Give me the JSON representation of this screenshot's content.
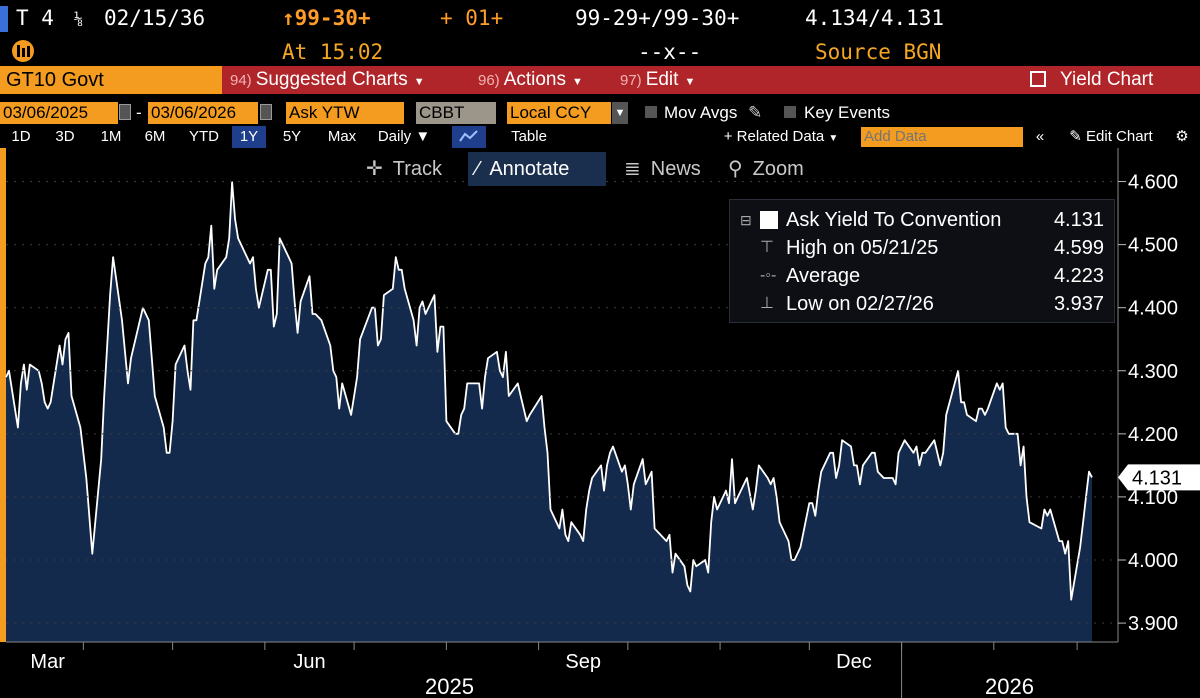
{
  "quote": {
    "ticker": "T 4",
    "coupon_fraction": "⅛",
    "maturity": "02/15/36",
    "last_price": "↑99-30+",
    "change": "+ 01+",
    "bid_ask_price": "99-29+/99-30+",
    "bid_ask_yield": "4.134/4.131",
    "time": "At 15:02",
    "spacer": "--x--",
    "source": "Source BGN"
  },
  "toolbar": {
    "security": "GT10 Govt",
    "items": [
      {
        "num": "94)",
        "label": "Suggested Charts"
      },
      {
        "num": "96)",
        "label": "Actions"
      },
      {
        "num": "97)",
        "label": "Edit"
      }
    ],
    "yield_chart": "Yield Chart"
  },
  "settings": {
    "start_date": "03/06/2025",
    "end_date": "03/06/2026",
    "dash": "-",
    "price_type": "Ask YTW",
    "pricing_source": "CBBT",
    "currency": "Local CCY",
    "mov_avgs": "Mov Avgs",
    "key_events": "Key Events"
  },
  "range": {
    "periods": [
      "1D",
      "3D",
      "1M",
      "6M",
      "YTD",
      "1Y",
      "5Y",
      "Max"
    ],
    "active": "1Y",
    "frequency": "Daily",
    "table": "Table",
    "related_data": "+ Related Data",
    "add_data_placeholder": "Add Data",
    "edit_chart": "Edit Chart"
  },
  "tools": [
    "Track",
    "Annotate",
    "News",
    "Zoom"
  ],
  "legend": {
    "series": {
      "label": "Ask Yield To Convention",
      "value": "4.131"
    },
    "high": {
      "label": "High on 05/21/25",
      "value": "4.599"
    },
    "average": {
      "label": "Average",
      "value": "4.223"
    },
    "low": {
      "label": "Low on 02/27/26",
      "value": "3.937"
    }
  },
  "colors": {
    "line": "#ffffff",
    "area": "#142a4c",
    "accent": "#f39c1f",
    "toolbar": "#b0252a"
  },
  "chart_data": {
    "type": "area",
    "series": [
      {
        "name": "Ask Yield To Convention"
      }
    ],
    "ylim": [
      3.87,
      4.65
    ],
    "yticks": [
      3.9,
      4.0,
      4.1,
      4.2,
      4.3,
      4.4,
      4.5,
      4.6
    ],
    "ytick_labels": [
      "3.900",
      "4.000",
      "4.100",
      "4.200",
      "4.300",
      "4.400",
      "4.500",
      "4.600"
    ],
    "last_value_label": "4.131",
    "last_value": 4.131,
    "x_month_labels": [
      "Mar",
      "Jun",
      "Sep",
      "Dec"
    ],
    "x_year_labels": [
      "2025",
      "2026"
    ],
    "x_start": "2025-03-06",
    "x_end": "2026-03-06",
    "points": [
      [
        "2025-03-06",
        4.29
      ],
      [
        "2025-03-07",
        4.3
      ],
      [
        "2025-03-10",
        4.21
      ],
      [
        "2025-03-11",
        4.28
      ],
      [
        "2025-03-12",
        4.31
      ],
      [
        "2025-03-13",
        4.27
      ],
      [
        "2025-03-14",
        4.31
      ],
      [
        "2025-03-17",
        4.3
      ],
      [
        "2025-03-18",
        4.28
      ],
      [
        "2025-03-19",
        4.25
      ],
      [
        "2025-03-20",
        4.24
      ],
      [
        "2025-03-21",
        4.25
      ],
      [
        "2025-03-24",
        4.34
      ],
      [
        "2025-03-25",
        4.31
      ],
      [
        "2025-03-26",
        4.35
      ],
      [
        "2025-03-27",
        4.36
      ],
      [
        "2025-03-28",
        4.26
      ],
      [
        "2025-03-31",
        4.21
      ],
      [
        "2025-04-02",
        4.13
      ],
      [
        "2025-04-04",
        4.01
      ],
      [
        "2025-04-07",
        4.16
      ],
      [
        "2025-04-08",
        4.26
      ],
      [
        "2025-04-09",
        4.34
      ],
      [
        "2025-04-10",
        4.42
      ],
      [
        "2025-04-11",
        4.48
      ],
      [
        "2025-04-14",
        4.38
      ],
      [
        "2025-04-15",
        4.33
      ],
      [
        "2025-04-16",
        4.28
      ],
      [
        "2025-04-17",
        4.32
      ],
      [
        "2025-04-21",
        4.4
      ],
      [
        "2025-04-22",
        4.39
      ],
      [
        "2025-04-23",
        4.38
      ],
      [
        "2025-04-24",
        4.32
      ],
      [
        "2025-04-25",
        4.26
      ],
      [
        "2025-04-28",
        4.21
      ],
      [
        "2025-04-29",
        4.17
      ],
      [
        "2025-04-30",
        4.17
      ],
      [
        "2025-05-01",
        4.22
      ],
      [
        "2025-05-02",
        4.31
      ],
      [
        "2025-05-05",
        4.34
      ],
      [
        "2025-05-06",
        4.3
      ],
      [
        "2025-05-07",
        4.27
      ],
      [
        "2025-05-08",
        4.38
      ],
      [
        "2025-05-09",
        4.38
      ],
      [
        "2025-05-12",
        4.47
      ],
      [
        "2025-05-13",
        4.48
      ],
      [
        "2025-05-14",
        4.53
      ],
      [
        "2025-05-15",
        4.43
      ],
      [
        "2025-05-16",
        4.46
      ],
      [
        "2025-05-19",
        4.48
      ],
      [
        "2025-05-20",
        4.51
      ],
      [
        "2025-05-21",
        4.599
      ],
      [
        "2025-05-22",
        4.54
      ],
      [
        "2025-05-23",
        4.51
      ],
      [
        "2025-05-27",
        4.47
      ],
      [
        "2025-05-28",
        4.48
      ],
      [
        "2025-05-29",
        4.43
      ],
      [
        "2025-05-30",
        4.4
      ],
      [
        "2025-06-02",
        4.46
      ],
      [
        "2025-06-03",
        4.46
      ],
      [
        "2025-06-04",
        4.37
      ],
      [
        "2025-06-05",
        4.39
      ],
      [
        "2025-06-06",
        4.51
      ],
      [
        "2025-06-09",
        4.48
      ],
      [
        "2025-06-10",
        4.47
      ],
      [
        "2025-06-11",
        4.41
      ],
      [
        "2025-06-12",
        4.36
      ],
      [
        "2025-06-13",
        4.41
      ],
      [
        "2025-06-16",
        4.45
      ],
      [
        "2025-06-17",
        4.39
      ],
      [
        "2025-06-18",
        4.39
      ],
      [
        "2025-06-20",
        4.38
      ],
      [
        "2025-06-23",
        4.34
      ],
      [
        "2025-06-24",
        4.3
      ],
      [
        "2025-06-25",
        4.29
      ],
      [
        "2025-06-26",
        4.24
      ],
      [
        "2025-06-27",
        4.28
      ],
      [
        "2025-06-30",
        4.23
      ],
      [
        "2025-07-01",
        4.26
      ],
      [
        "2025-07-02",
        4.29
      ],
      [
        "2025-07-03",
        4.35
      ],
      [
        "2025-07-07",
        4.4
      ],
      [
        "2025-07-08",
        4.4
      ],
      [
        "2025-07-09",
        4.34
      ],
      [
        "2025-07-10",
        4.35
      ],
      [
        "2025-07-11",
        4.42
      ],
      [
        "2025-07-14",
        4.43
      ],
      [
        "2025-07-15",
        4.48
      ],
      [
        "2025-07-16",
        4.46
      ],
      [
        "2025-07-17",
        4.46
      ],
      [
        "2025-07-18",
        4.43
      ],
      [
        "2025-07-21",
        4.38
      ],
      [
        "2025-07-22",
        4.34
      ],
      [
        "2025-07-23",
        4.4
      ],
      [
        "2025-07-24",
        4.41
      ],
      [
        "2025-07-25",
        4.39
      ],
      [
        "2025-07-28",
        4.42
      ],
      [
        "2025-07-29",
        4.33
      ],
      [
        "2025-07-30",
        4.37
      ],
      [
        "2025-07-31",
        4.37
      ],
      [
        "2025-08-01",
        4.22
      ],
      [
        "2025-08-04",
        4.2
      ],
      [
        "2025-08-05",
        4.2
      ],
      [
        "2025-08-06",
        4.23
      ],
      [
        "2025-08-07",
        4.24
      ],
      [
        "2025-08-08",
        4.28
      ],
      [
        "2025-08-11",
        4.28
      ],
      [
        "2025-08-12",
        4.28
      ],
      [
        "2025-08-13",
        4.24
      ],
      [
        "2025-08-14",
        4.29
      ],
      [
        "2025-08-15",
        4.32
      ],
      [
        "2025-08-18",
        4.33
      ],
      [
        "2025-08-19",
        4.3
      ],
      [
        "2025-08-20",
        4.29
      ],
      [
        "2025-08-21",
        4.33
      ],
      [
        "2025-08-22",
        4.26
      ],
      [
        "2025-08-25",
        4.28
      ],
      [
        "2025-08-26",
        4.26
      ],
      [
        "2025-08-27",
        4.24
      ],
      [
        "2025-08-28",
        4.22
      ],
      [
        "2025-08-29",
        4.23
      ],
      [
        "2025-09-02",
        4.26
      ],
      [
        "2025-09-03",
        4.21
      ],
      [
        "2025-09-04",
        4.17
      ],
      [
        "2025-09-05",
        4.08
      ],
      [
        "2025-09-08",
        4.05
      ],
      [
        "2025-09-09",
        4.08
      ],
      [
        "2025-09-10",
        4.04
      ],
      [
        "2025-09-11",
        4.03
      ],
      [
        "2025-09-12",
        4.06
      ],
      [
        "2025-09-15",
        4.04
      ],
      [
        "2025-09-16",
        4.03
      ],
      [
        "2025-09-17",
        4.08
      ],
      [
        "2025-09-18",
        4.11
      ],
      [
        "2025-09-19",
        4.13
      ],
      [
        "2025-09-22",
        4.15
      ],
      [
        "2025-09-23",
        4.11
      ],
      [
        "2025-09-24",
        4.15
      ],
      [
        "2025-09-25",
        4.17
      ],
      [
        "2025-09-26",
        4.18
      ],
      [
        "2025-09-29",
        4.14
      ],
      [
        "2025-09-30",
        4.15
      ],
      [
        "2025-10-01",
        4.12
      ],
      [
        "2025-10-02",
        4.08
      ],
      [
        "2025-10-03",
        4.12
      ],
      [
        "2025-10-06",
        4.16
      ],
      [
        "2025-10-07",
        4.12
      ],
      [
        "2025-10-08",
        4.13
      ],
      [
        "2025-10-09",
        4.14
      ],
      [
        "2025-10-10",
        4.05
      ],
      [
        "2025-10-14",
        4.03
      ],
      [
        "2025-10-15",
        4.04
      ],
      [
        "2025-10-16",
        3.98
      ],
      [
        "2025-10-17",
        4.01
      ],
      [
        "2025-10-20",
        3.99
      ],
      [
        "2025-10-21",
        3.96
      ],
      [
        "2025-10-22",
        3.95
      ],
      [
        "2025-10-23",
        4.0
      ],
      [
        "2025-10-24",
        3.99
      ],
      [
        "2025-10-27",
        4.0
      ],
      [
        "2025-10-28",
        3.98
      ],
      [
        "2025-10-29",
        4.06
      ],
      [
        "2025-10-30",
        4.1
      ],
      [
        "2025-10-31",
        4.08
      ],
      [
        "2025-11-03",
        4.11
      ],
      [
        "2025-11-04",
        4.09
      ],
      [
        "2025-11-05",
        4.16
      ],
      [
        "2025-11-06",
        4.09
      ],
      [
        "2025-11-07",
        4.1
      ],
      [
        "2025-11-10",
        4.13
      ],
      [
        "2025-11-12",
        4.08
      ],
      [
        "2025-11-13",
        4.11
      ],
      [
        "2025-11-14",
        4.15
      ],
      [
        "2025-11-17",
        4.13
      ],
      [
        "2025-11-18",
        4.12
      ],
      [
        "2025-11-19",
        4.13
      ],
      [
        "2025-11-20",
        4.1
      ],
      [
        "2025-11-21",
        4.06
      ],
      [
        "2025-11-24",
        4.03
      ],
      [
        "2025-11-25",
        4.0
      ],
      [
        "2025-11-26",
        4.0
      ],
      [
        "2025-11-28",
        4.02
      ],
      [
        "2025-12-01",
        4.09
      ],
      [
        "2025-12-02",
        4.09
      ],
      [
        "2025-12-03",
        4.07
      ],
      [
        "2025-12-04",
        4.11
      ],
      [
        "2025-12-05",
        4.14
      ],
      [
        "2025-12-08",
        4.17
      ],
      [
        "2025-12-09",
        4.17
      ],
      [
        "2025-12-10",
        4.13
      ],
      [
        "2025-12-11",
        4.15
      ],
      [
        "2025-12-12",
        4.19
      ],
      [
        "2025-12-15",
        4.18
      ],
      [
        "2025-12-16",
        4.15
      ],
      [
        "2025-12-17",
        4.15
      ],
      [
        "2025-12-18",
        4.12
      ],
      [
        "2025-12-19",
        4.15
      ],
      [
        "2025-12-22",
        4.17
      ],
      [
        "2025-12-23",
        4.17
      ],
      [
        "2025-12-24",
        4.14
      ],
      [
        "2025-12-26",
        4.13
      ],
      [
        "2025-12-29",
        4.13
      ],
      [
        "2025-12-30",
        4.12
      ],
      [
        "2025-12-31",
        4.17
      ],
      [
        "2026-01-02",
        4.19
      ],
      [
        "2026-01-05",
        4.17
      ],
      [
        "2026-01-06",
        4.18
      ],
      [
        "2026-01-07",
        4.15
      ],
      [
        "2026-01-08",
        4.17
      ],
      [
        "2026-01-09",
        4.17
      ],
      [
        "2026-01-12",
        4.19
      ],
      [
        "2026-01-13",
        4.17
      ],
      [
        "2026-01-14",
        4.15
      ],
      [
        "2026-01-15",
        4.17
      ],
      [
        "2026-01-16",
        4.23
      ],
      [
        "2026-01-20",
        4.3
      ],
      [
        "2026-01-21",
        4.25
      ],
      [
        "2026-01-22",
        4.25
      ],
      [
        "2026-01-23",
        4.23
      ],
      [
        "2026-01-26",
        4.22
      ],
      [
        "2026-01-27",
        4.24
      ],
      [
        "2026-01-28",
        4.24
      ],
      [
        "2026-01-29",
        4.23
      ],
      [
        "2026-01-30",
        4.24
      ],
      [
        "2026-02-02",
        4.28
      ],
      [
        "2026-02-03",
        4.27
      ],
      [
        "2026-02-04",
        4.28
      ],
      [
        "2026-02-05",
        4.21
      ],
      [
        "2026-02-06",
        4.2
      ],
      [
        "2026-02-09",
        4.2
      ],
      [
        "2026-02-10",
        4.15
      ],
      [
        "2026-02-11",
        4.18
      ],
      [
        "2026-02-12",
        4.1
      ],
      [
        "2026-02-13",
        4.06
      ],
      [
        "2026-02-17",
        4.05
      ],
      [
        "2026-02-18",
        4.08
      ],
      [
        "2026-02-19",
        4.07
      ],
      [
        "2026-02-20",
        4.08
      ],
      [
        "2026-02-23",
        4.03
      ],
      [
        "2026-02-24",
        4.03
      ],
      [
        "2026-02-25",
        4.01
      ],
      [
        "2026-02-26",
        4.03
      ],
      [
        "2026-02-27",
        3.937
      ],
      [
        "2026-03-02",
        4.02
      ],
      [
        "2026-03-03",
        4.06
      ],
      [
        "2026-03-04",
        4.1
      ],
      [
        "2026-03-05",
        4.14
      ],
      [
        "2026-03-06",
        4.131
      ]
    ]
  }
}
